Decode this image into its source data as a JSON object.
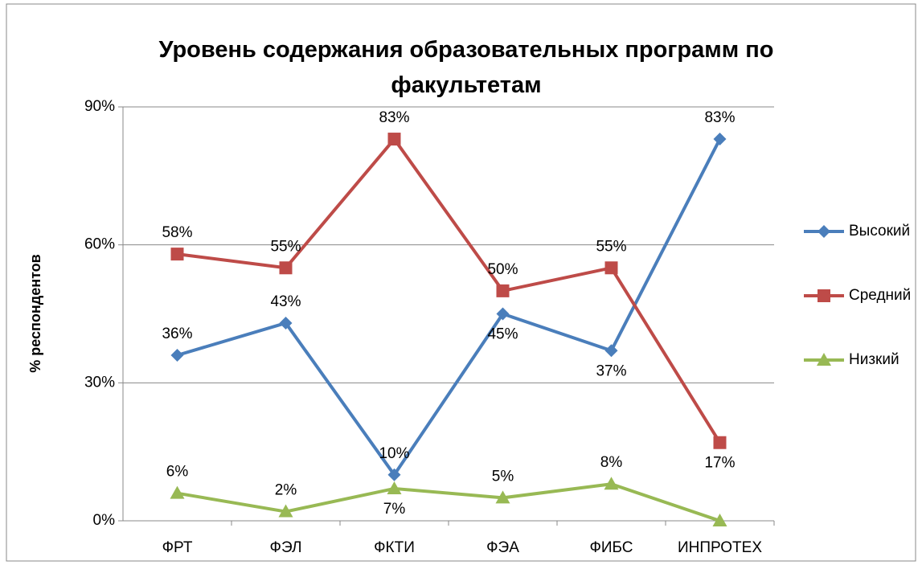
{
  "chart_data": {
    "type": "line",
    "title": "Уровень содержания образовательных программ по факультетам",
    "ylabel": "% респондентов",
    "categories": [
      "ФРТ",
      "ФЭЛ",
      "ФКТИ",
      "ФЭА",
      "ФИБС",
      "ИНПРОТЕХ"
    ],
    "series": [
      {
        "name": "Высокий",
        "color": "#4a7ebb",
        "marker": "diamond",
        "values": [
          36,
          43,
          10,
          45,
          37,
          83
        ],
        "value_labels": [
          "36%",
          "43%",
          "10%",
          "45%",
          "37%",
          "83%"
        ]
      },
      {
        "name": "Средний",
        "color": "#be4b48",
        "marker": "square",
        "values": [
          58,
          55,
          83,
          50,
          55,
          17
        ],
        "value_labels": [
          "58%",
          "55%",
          "83%",
          "50%",
          "55%",
          "17%"
        ]
      },
      {
        "name": "Низкий",
        "color": "#98b954",
        "marker": "triangle",
        "values": [
          6,
          2,
          7,
          5,
          8,
          0
        ],
        "value_labels": [
          "6%",
          "2%",
          "7%",
          "5%",
          "8%",
          null
        ]
      }
    ],
    "ylim": [
      0,
      90
    ],
    "yticks": [
      {
        "value": 0,
        "label": "0%"
      },
      {
        "value": 30,
        "label": "30%"
      },
      {
        "value": 60,
        "label": "60%"
      },
      {
        "value": 90,
        "label": "90%"
      }
    ],
    "grid": true,
    "legend": "right"
  }
}
